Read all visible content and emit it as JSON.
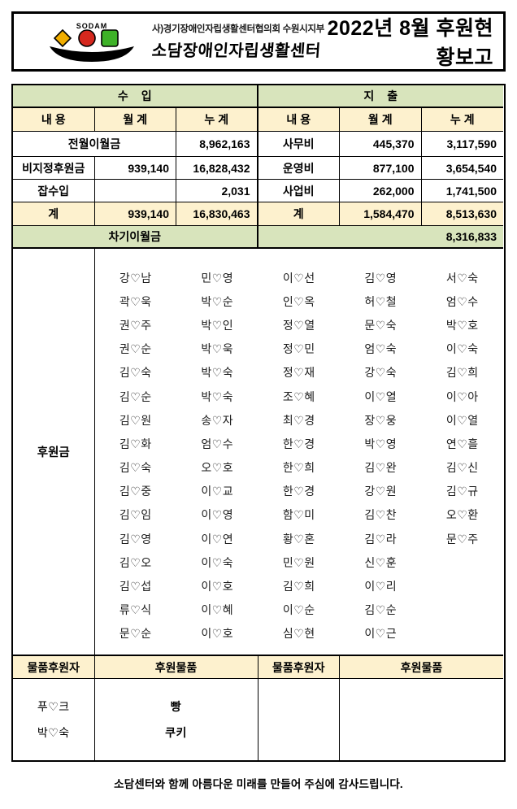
{
  "header": {
    "logo_text": "SODAM",
    "org_line1": "사)경기장애인자립생활센터협의회 수원시지부",
    "org_line2": "소담장애인자립생활센터",
    "title": "2022년 8월 후원현황보고"
  },
  "colors": {
    "section_green": "#d8e4bc",
    "header_cream": "#fdf1ce",
    "logo_yellow": "#f0ad00",
    "logo_red": "#d5281e",
    "logo_green": "#3eb228",
    "border_black": "#000000"
  },
  "summary": {
    "income_title": "수 입",
    "expense_title": "지 출",
    "columns": [
      "내 용",
      "월 계",
      "누 계"
    ],
    "income_rows": [
      {
        "label": "전월이월금",
        "monthly": "",
        "cumulative": "8,962,163"
      },
      {
        "label": "비지정후원금",
        "monthly": "939,140",
        "cumulative": "16,828,432"
      },
      {
        "label": "잡수입",
        "monthly": "",
        "cumulative": "2,031"
      },
      {
        "label": "계",
        "monthly": "939,140",
        "cumulative": "16,830,463"
      }
    ],
    "expense_rows": [
      {
        "label": "사무비",
        "monthly": "445,370",
        "cumulative": "3,117,590"
      },
      {
        "label": "운영비",
        "monthly": "877,100",
        "cumulative": "3,654,540"
      },
      {
        "label": "사업비",
        "monthly": "262,000",
        "cumulative": "1,741,500"
      },
      {
        "label": "계",
        "monthly": "1,584,470",
        "cumulative": "8,513,630"
      }
    ],
    "carryover": {
      "label": "차기이월금",
      "value": "8,316,833"
    }
  },
  "donors": {
    "section_label": "후원금",
    "columns": [
      [
        "강♡남",
        "곽♡욱",
        "권♡주",
        "권♡순",
        "김♡숙",
        "김♡순",
        "김♡원",
        "김♡화",
        "김♡숙",
        "김♡중",
        "김♡임",
        "김♡영",
        "김♡오",
        "김♡섭",
        "류♡식",
        "문♡순"
      ],
      [
        "민♡영",
        "박♡순",
        "박♡인",
        "박♡욱",
        "박♡숙",
        "박♡숙",
        "송♡자",
        "엄♡수",
        "오♡호",
        "이♡교",
        "이♡영",
        "이♡연",
        "이♡숙",
        "이♡호",
        "이♡혜",
        "이♡호"
      ],
      [
        "이♡선",
        "인♡옥",
        "정♡열",
        "정♡민",
        "정♡재",
        "조♡혜",
        "최♡경",
        "한♡경",
        "한♡희",
        "한♡경",
        "함♡미",
        "황♡혼",
        "민♡원",
        "김♡희",
        "이♡순",
        "심♡현"
      ],
      [
        "김♡영",
        "허♡철",
        "문♡숙",
        "엄♡숙",
        "강♡숙",
        "이♡열",
        "장♡웅",
        "박♡영",
        "김♡완",
        "강♡원",
        "김♡찬",
        "김♡라",
        "신♡훈",
        "이♡리",
        "김♡순",
        "이♡근"
      ],
      [
        "서♡숙",
        "엄♡수",
        "박♡호",
        "이♡숙",
        "김♡희",
        "이♡아",
        "이♡열",
        "연♡흘",
        "김♡신",
        "김♡규",
        "오♡환",
        "문♡주"
      ]
    ]
  },
  "goods": {
    "donor_header": "물품후원자",
    "item_header": "후원물품",
    "left": {
      "donors": [
        "푸♡크",
        "박♡숙"
      ],
      "items": [
        "빵",
        "쿠키"
      ]
    },
    "right": {
      "donors": [],
      "items": []
    }
  },
  "footer": "소담센터와 함께 아름다운 미래를 만들어 주심에 감사드립니다."
}
